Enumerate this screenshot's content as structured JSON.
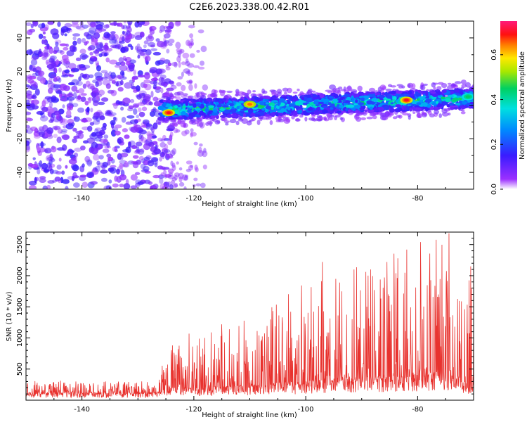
{
  "figure": {
    "title": "C2E6.2023.338.00.42.R01"
  },
  "chart_data": [
    {
      "type": "heatmap",
      "title": "",
      "xlabel": "Height of straight line (km)",
      "ylabel": "Frequency (Hz)",
      "xlim": [
        -150,
        -70
      ],
      "ylim": [
        -50,
        50
      ],
      "xticks": [
        -140,
        -120,
        -100,
        -80
      ],
      "yticks": [
        -40,
        -20,
        0,
        20,
        40
      ],
      "colorbar": {
        "label": "Normalized spectral amplitude",
        "range": [
          0.0,
          0.75
        ],
        "ticks": [
          0.0,
          0.2,
          0.4,
          0.6
        ],
        "colormap": "rainbow (purple-blue-cyan-green-yellow-red-magenta)"
      },
      "description_regions": [
        {
          "x_range": [
            -150,
            -126
          ],
          "y_range": [
            -50,
            50
          ],
          "level": "scattered low (0.05-0.15)"
        },
        {
          "x_range": [
            -126,
            -70
          ],
          "y_range": [
            -8,
            8
          ],
          "level": "narrow band 0.1-0.7, centered near 0 Hz"
        }
      ],
      "hotspots": [
        {
          "x": -124.5,
          "y": -4.5,
          "value": 0.7
        },
        {
          "x": -110,
          "y": 0.5,
          "value": 0.65
        },
        {
          "x": -82,
          "y": 3,
          "value": 0.7
        },
        {
          "x": -71,
          "y": 5,
          "value": 0.45
        }
      ],
      "grid": false
    },
    {
      "type": "line",
      "title": "",
      "xlabel": "Height of straight line (km)",
      "ylabel": "SNR (10 * v/v)",
      "xlim": [
        -150,
        -70
      ],
      "ylim": [
        0,
        2700
      ],
      "xticks": [
        -140,
        -120,
        -100,
        -80
      ],
      "yticks": [
        500,
        1000,
        1500,
        2000,
        2500
      ],
      "series": [
        {
          "color": "#e8322e",
          "envelope": [
            {
              "x": -150,
              "base": 100,
              "peak": 330
            },
            {
              "x": -127,
              "base": 100,
              "peak": 300
            },
            {
              "x": -124,
              "base": 200,
              "peak": 900
            },
            {
              "x": -120,
              "base": 150,
              "peak": 1150
            },
            {
              "x": -110,
              "base": 200,
              "peak": 1300
            },
            {
              "x": -100,
              "base": 250,
              "peak": 1900
            },
            {
              "x": -90,
              "base": 300,
              "peak": 2200
            },
            {
              "x": -80,
              "base": 350,
              "peak": 2500
            },
            {
              "x": -74.5,
              "base": 400,
              "peak": 2680
            },
            {
              "x": -70,
              "base": 200,
              "peak": 1900
            }
          ],
          "notable_points": [
            {
              "x": -74.4,
              "y": 2680
            },
            {
              "x": -79.5,
              "y": 2540
            },
            {
              "x": -85.5,
              "y": 2220
            },
            {
              "x": -97,
              "y": 2220
            },
            {
              "x": -70.5,
              "y": 2150
            },
            {
              "x": -123.8,
              "y": 880
            }
          ]
        }
      ],
      "grid": false
    }
  ]
}
